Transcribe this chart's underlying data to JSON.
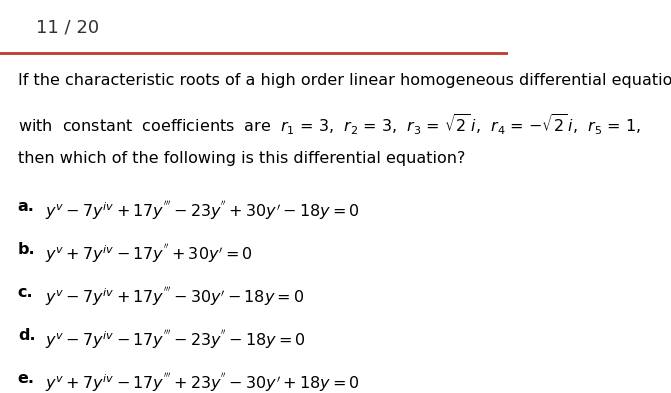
{
  "title_text": "11 / 20",
  "title_color": "#333333",
  "title_fontsize": 13,
  "separator_color": "#c0392b",
  "bg_color": "#ffffff",
  "text_color": "#000000",
  "question_lines": [
    "If the characteristic roots of a high order linear homogeneous differential equation",
    "with  constant  coefficients  are  $r_1$ = 3,  $r_2$ = 3,  $r_3$ = $\\sqrt{2}\\,i$,  $r_4$ = $-\\sqrt{2}\\,i$,  $r_5$ = 1,",
    "then which of the following is this differential equation?"
  ],
  "options": [
    {
      "label": "a.",
      "eq": "$y^v - 7y^{iv} + 17y^{'''} - 23y^{''} + 30y' - 18y = 0$"
    },
    {
      "label": "b.",
      "eq": "$y^v + 7y^{iv} - 17y^{''} + 30y' = 0$"
    },
    {
      "label": "c.",
      "eq": "$y^v - 7y^{iv} + 17y^{'''} - 30y' - 18y = 0$"
    },
    {
      "label": "d.",
      "eq": "$y^v - 7y^{iv} - 17y^{'''} - 23y^{''} - 18y = 0$"
    },
    {
      "label": "e.",
      "eq": "$y^v + 7y^{iv} - 17y^{'''} + 23y^{''} - 30y' + 18y = 0$"
    }
  ],
  "option_fontsize": 11.5,
  "question_fontsize": 11.5
}
